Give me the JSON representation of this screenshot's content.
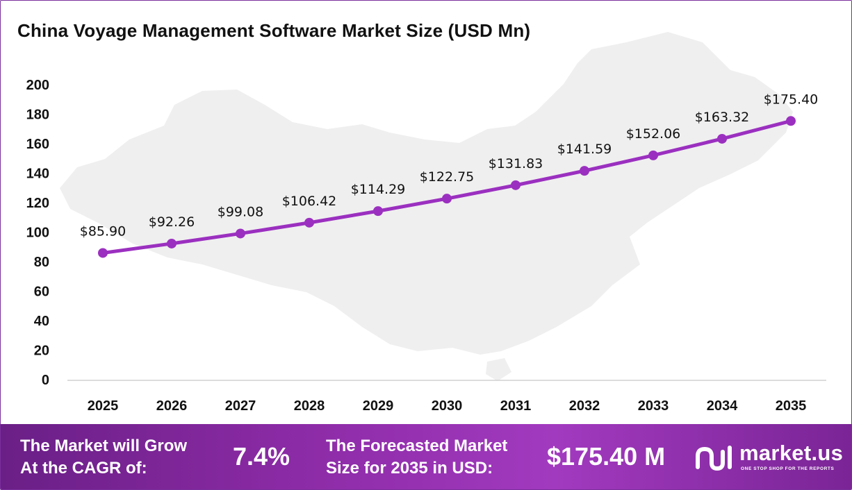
{
  "chart_data": {
    "type": "line",
    "title": "China Voyage Management Software Market Size (USD Mn)",
    "xlabel": "",
    "ylabel": "",
    "categories": [
      "2025",
      "2026",
      "2027",
      "2028",
      "2029",
      "2030",
      "2031",
      "2032",
      "2033",
      "2034",
      "2035"
    ],
    "values": [
      85.9,
      92.26,
      99.08,
      106.42,
      114.29,
      122.75,
      131.83,
      141.59,
      152.06,
      163.32,
      175.4
    ],
    "data_labels": [
      "$85.90",
      "$92.26",
      "$99.08",
      "$106.42",
      "$114.29",
      "$122.75",
      "$131.83",
      "$141.59",
      "$152.06",
      "$163.32",
      "$175.40"
    ],
    "ylim": [
      0,
      200
    ],
    "yticks": [
      "0",
      "20",
      "40",
      "60",
      "80",
      "100",
      "120",
      "140",
      "160",
      "180",
      "200"
    ],
    "grid": false,
    "legend": "none",
    "line_color": "#9b30c0"
  },
  "footer": {
    "cagr_label_line1": "The Market will Grow",
    "cagr_label_line2": "At the CAGR of:",
    "cagr_value": "7.4%",
    "forecast_label_line1": "The Forecasted Market",
    "forecast_label_line2": "Size for 2035 in USD:",
    "forecast_value": "$175.40 M",
    "background_color": "#8c2ba6"
  },
  "logo": {
    "name": "market.us",
    "tagline": "ONE STOP SHOP FOR THE REPORTS",
    "icon": "market-us-logo-icon"
  }
}
